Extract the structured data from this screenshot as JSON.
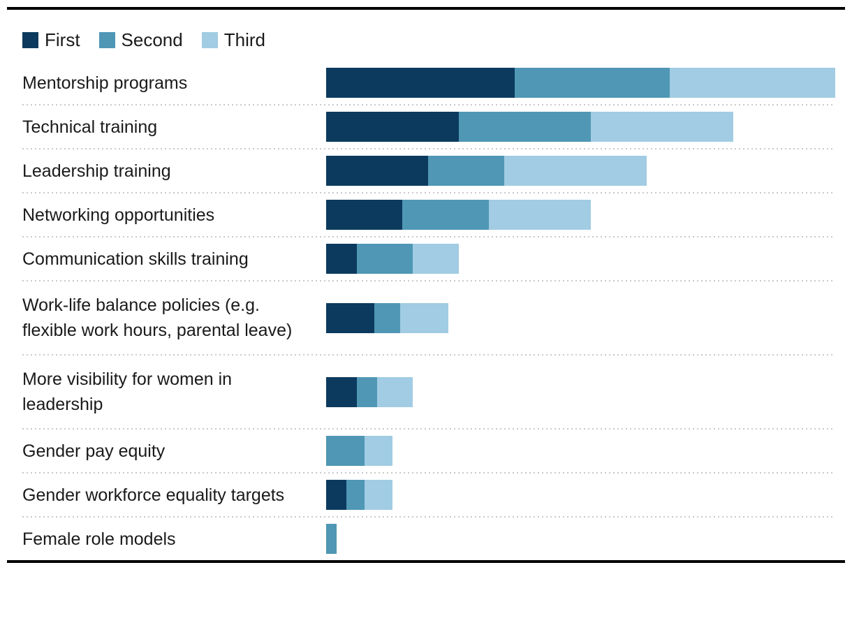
{
  "legend": {
    "items": [
      {
        "label": "First"
      },
      {
        "label": "Second"
      },
      {
        "label": "Third"
      }
    ]
  },
  "chart_data": {
    "type": "bar",
    "stacked": true,
    "orientation": "horizontal",
    "title": "",
    "xlabel": "",
    "ylabel": "",
    "axis_visible": false,
    "grid": false,
    "legend_position": "top",
    "xlim": [
      0,
      100
    ],
    "categories": [
      "Mentorship programs",
      "Technical training",
      "Leadership training",
      "Networking opportunities",
      "Communication skills training",
      "Work-life balance policies (e.g. flexible work hours, parental leave)",
      "More visibility for women in leadership",
      "Gender pay equity",
      "Gender workforce equality targets",
      "Female role models"
    ],
    "series": [
      {
        "name": "First",
        "color": "#0c3a5e",
        "values": [
          37,
          26,
          20,
          15,
          6,
          9.5,
          6,
          0,
          4,
          0
        ]
      },
      {
        "name": "Second",
        "color": "#4f97b5",
        "values": [
          30.5,
          26,
          15,
          17,
          11,
          5,
          4,
          7.5,
          3.5,
          2
        ]
      },
      {
        "name": "Third",
        "color": "#a1cce3",
        "values": [
          32.5,
          28,
          28,
          20,
          9,
          9.5,
          7,
          5.5,
          5.5,
          0
        ]
      }
    ]
  },
  "style": {
    "rule_color": "#000000",
    "separator_color": "#c9c9c9",
    "text_color": "#1a1a1a",
    "background": "#ffffff"
  }
}
